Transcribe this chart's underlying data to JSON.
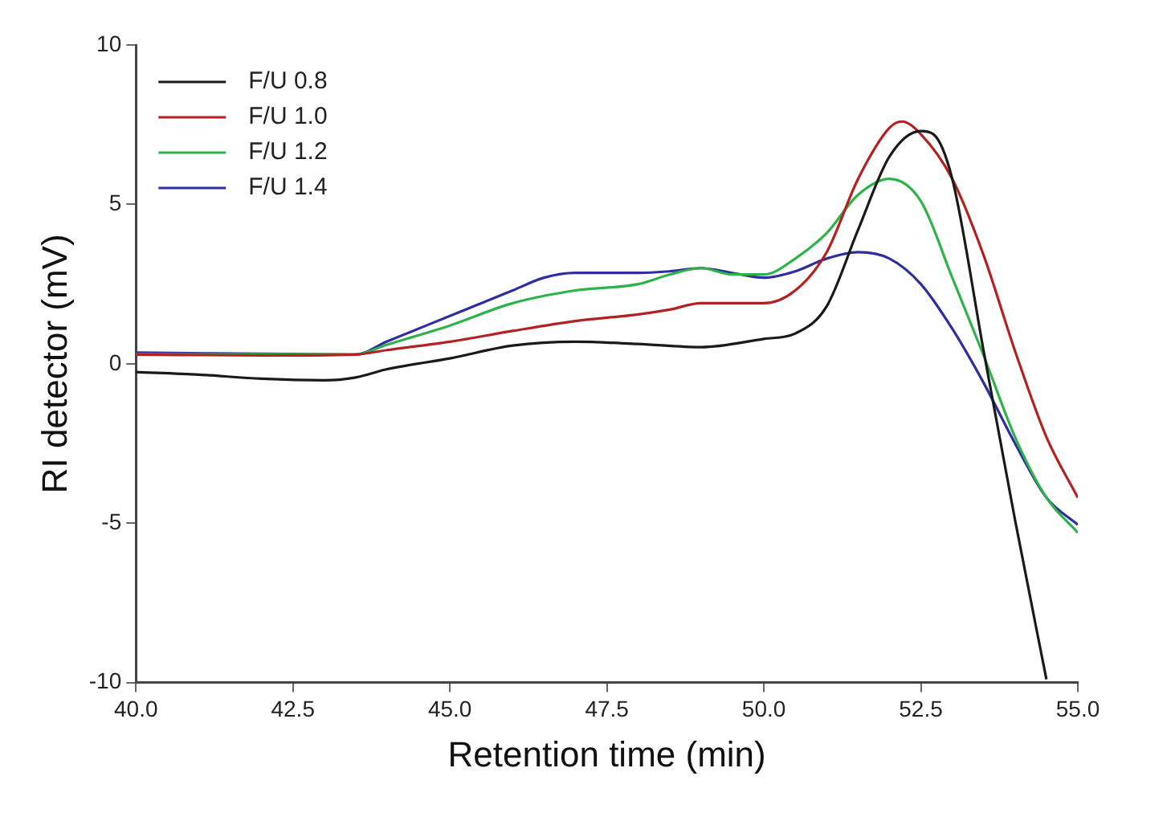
{
  "chart_data": {
    "type": "line",
    "xlabel": "Retention time (min)",
    "ylabel": "RI detector (mV)",
    "xlim": [
      40,
      55
    ],
    "xticks": [
      {
        "value": 40,
        "label": "40.0"
      },
      {
        "value": 42.5,
        "label": "42.5"
      },
      {
        "value": 45,
        "label": "45.0"
      },
      {
        "value": 47.5,
        "label": "47.5"
      },
      {
        "value": 50,
        "label": "50.0"
      },
      {
        "value": 52.5,
        "label": "52.5"
      },
      {
        "value": 55,
        "label": "55.0"
      }
    ],
    "ylim": [
      -10,
      10
    ],
    "yticks": [
      -10,
      -5,
      0,
      5,
      10
    ],
    "grid": false,
    "legend": "top left",
    "marker": "none",
    "line_style": "solid",
    "series": [
      {
        "name": "F/U 0.8",
        "color": "#1a1a1a",
        "x": [
          40,
          41,
          42,
          43,
          43.5,
          44,
          45,
          46,
          47,
          48,
          49,
          50,
          50.5,
          51,
          51.5,
          52,
          52.5,
          52.7,
          53,
          53.5,
          54,
          54.5
        ],
        "values": [
          -0.26,
          -0.34,
          -0.47,
          -0.52,
          -0.43,
          -0.17,
          0.17,
          0.57,
          0.69,
          0.62,
          0.52,
          0.78,
          0.95,
          1.8,
          4.2,
          6.5,
          7.3,
          7.2,
          5.8,
          0.4,
          -4.9,
          -9.9
        ]
      },
      {
        "name": "F/U 1.0",
        "color": "#b22222",
        "x": [
          40,
          42,
          43.5,
          44,
          45,
          46,
          47,
          48,
          48.5,
          49,
          50,
          50.5,
          51,
          51.5,
          52,
          52.2,
          52.5,
          53,
          53.5,
          54,
          54.5,
          55
        ],
        "values": [
          0.29,
          0.26,
          0.29,
          0.43,
          0.69,
          1.03,
          1.34,
          1.55,
          1.7,
          1.9,
          1.9,
          2.3,
          3.5,
          5.8,
          7.4,
          7.6,
          7.2,
          5.8,
          3.4,
          0.4,
          -2.3,
          -4.2
        ]
      },
      {
        "name": "F/U 1.2",
        "color": "#2db34a",
        "x": [
          40,
          43.5,
          44,
          45,
          46,
          47,
          48,
          48.5,
          49,
          49.5,
          50,
          50.5,
          51,
          51.5,
          52,
          52.5,
          53,
          53.5,
          54,
          54.5,
          55
        ],
        "values": [
          0.3,
          0.29,
          0.6,
          1.2,
          1.9,
          2.3,
          2.5,
          2.8,
          3.0,
          2.8,
          2.8,
          3.3,
          4.1,
          5.3,
          5.8,
          5.1,
          2.7,
          0.26,
          -2.3,
          -4.2,
          -5.3
        ]
      },
      {
        "name": "F/U 1.4",
        "color": "#2e2e9e",
        "x": [
          40,
          43.5,
          44,
          45,
          46,
          46.5,
          47,
          48,
          48.5,
          49,
          49.5,
          50,
          50.5,
          51,
          51.5,
          52,
          52.5,
          53,
          53.5,
          54,
          54.5,
          55
        ],
        "values": [
          0.35,
          0.29,
          0.7,
          1.5,
          2.3,
          2.7,
          2.85,
          2.85,
          2.9,
          3.0,
          2.85,
          2.7,
          2.9,
          3.3,
          3.5,
          3.3,
          2.5,
          1.1,
          -0.6,
          -2.5,
          -4.2,
          -5.05
        ]
      }
    ]
  }
}
